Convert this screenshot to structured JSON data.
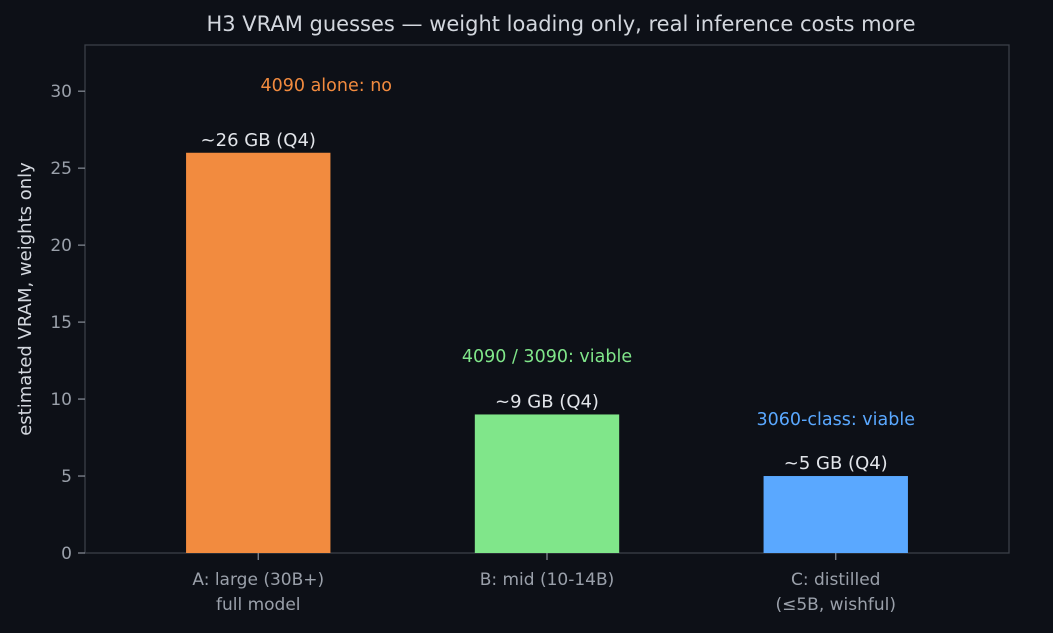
{
  "chart_data": {
    "type": "bar",
    "title": "H3 VRAM guesses — weight loading only, real inference costs more",
    "xlabel": "",
    "ylabel": "estimated VRAM, weights only",
    "ylim": [
      0,
      33
    ],
    "yticks": [
      0,
      5,
      10,
      15,
      20,
      25,
      30
    ],
    "grid": false,
    "categories": [
      [
        "A: large (30B+)",
        "full model"
      ],
      [
        "B: mid (10-14B)"
      ],
      [
        "C: distilled",
        "(≤5B, wishful)"
      ]
    ],
    "values": [
      26,
      9,
      5
    ],
    "bar_labels": [
      "~26 GB (Q4)",
      "~9 GB (Q4)",
      "~5 GB (Q4)"
    ],
    "annotations": [
      "4090 alone: no",
      "4090 / 3090: viable",
      "3060-class: viable"
    ],
    "annotation_y": [
      30.4,
      12.8,
      8.7
    ],
    "colors": {
      "bars": [
        "#f28b3f",
        "#80e68a",
        "#5aa8ff"
      ],
      "annotations": [
        "#f28b3f",
        "#80e68a",
        "#5aa8ff"
      ],
      "background": "#0d1017",
      "axes": "#3b3f48"
    }
  }
}
